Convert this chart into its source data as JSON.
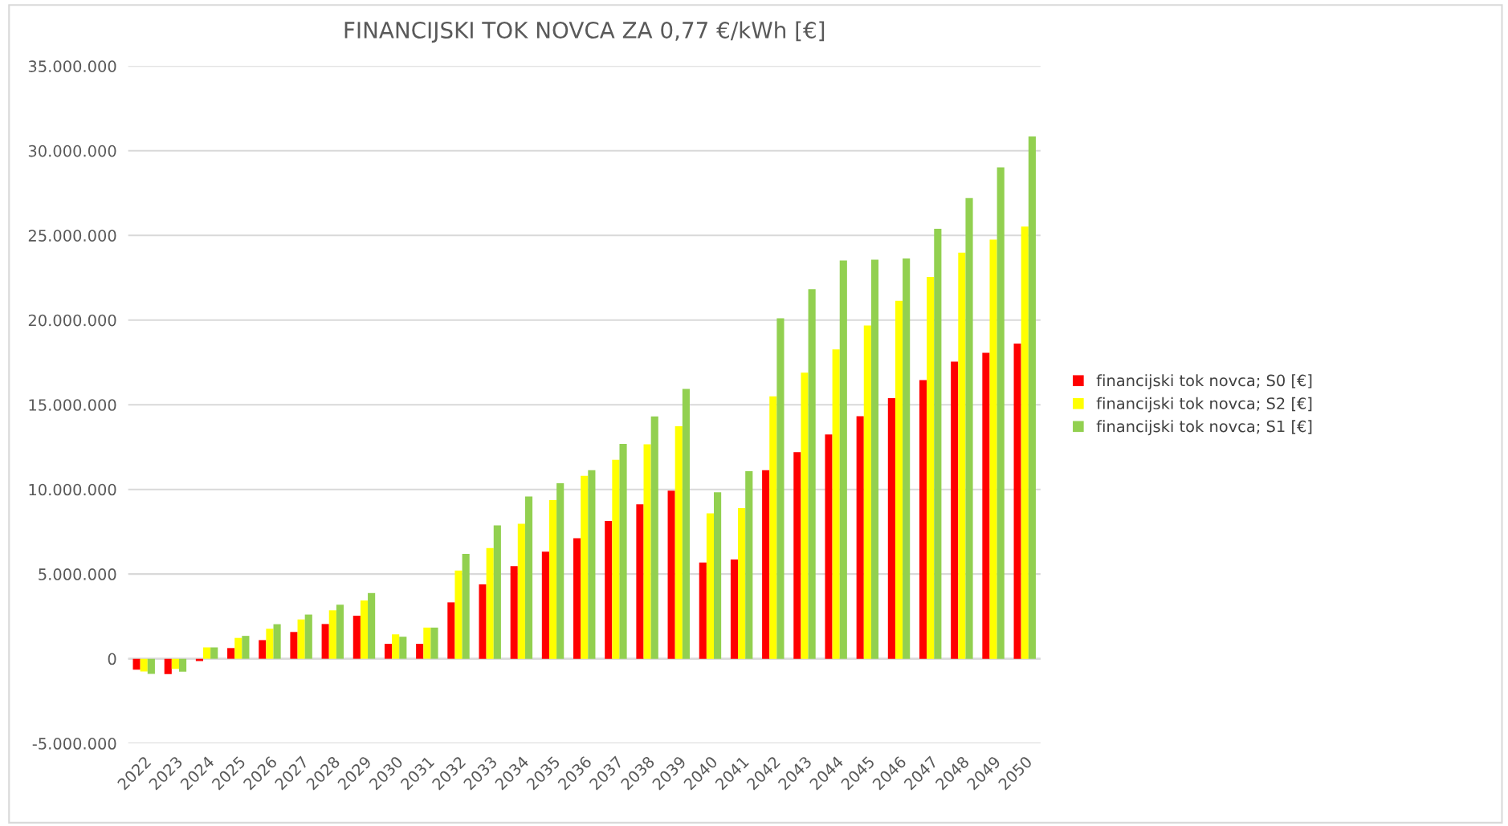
{
  "chart_data": {
    "type": "bar",
    "title": "FINANCIJSKI TOK NOVCA ZA 0,77 €/kWh [€]",
    "categories": [
      "2022",
      "2023",
      "2024",
      "2025",
      "2026",
      "2027",
      "2028",
      "2029",
      "2030",
      "2031",
      "2032",
      "2033",
      "2034",
      "2035",
      "2036",
      "2037",
      "2038",
      "2039",
      "2040",
      "2041",
      "2042",
      "2043",
      "2044",
      "2045",
      "2046",
      "2047",
      "2048",
      "2049",
      "2050"
    ],
    "series": [
      {
        "name": "financijski tok novca; S0 [€]",
        "color": "#ff0000",
        "values": [
          -650000,
          -910000,
          -140000,
          630000,
          1100000,
          1580000,
          2050000,
          2540000,
          880000,
          880000,
          3330000,
          4390000,
          5470000,
          6320000,
          7120000,
          8140000,
          9120000,
          9930000,
          5680000,
          5860000,
          11140000,
          12200000,
          13250000,
          14320000,
          15390000,
          16450000,
          17550000,
          18070000,
          18610000
        ]
      },
      {
        "name": "financijski tok novca; S2 [€]",
        "color": "#ffff00",
        "values": [
          -750000,
          -600000,
          670000,
          1230000,
          1770000,
          2320000,
          2860000,
          3440000,
          1440000,
          1840000,
          5210000,
          6540000,
          7970000,
          9370000,
          10800000,
          11750000,
          12660000,
          13730000,
          8590000,
          8900000,
          15500000,
          16890000,
          18270000,
          19680000,
          21140000,
          22550000,
          23980000,
          24750000,
          25520000
        ]
      },
      {
        "name": "financijski tok novca; S1 [€]",
        "color": "#92d050",
        "values": [
          -900000,
          -770000,
          670000,
          1350000,
          2040000,
          2610000,
          3190000,
          3880000,
          1300000,
          1840000,
          6190000,
          7880000,
          9580000,
          10370000,
          11140000,
          12690000,
          14310000,
          15930000,
          9830000,
          11080000,
          20110000,
          21820000,
          23520000,
          23570000,
          23640000,
          25390000,
          27200000,
          29020000,
          30840000
        ]
      }
    ],
    "ylim": [
      -5000000,
      35000000
    ],
    "yticks": [
      {
        "value": -5000000,
        "label": "-5.000.000"
      },
      0,
      {
        "value": 5000000,
        "label": "5.000.000"
      },
      {
        "value": 10000000,
        "label": "10.000.000"
      },
      {
        "value": 15000000,
        "label": "15.000.000"
      },
      {
        "value": 20000000,
        "label": "20.000.000"
      },
      {
        "value": 25000000,
        "label": "25.000.000"
      },
      {
        "value": 30000000,
        "label": "30.000.000"
      },
      {
        "value": 35000000,
        "label": "35.000.000"
      }
    ],
    "grid": "y",
    "legend": "right"
  }
}
